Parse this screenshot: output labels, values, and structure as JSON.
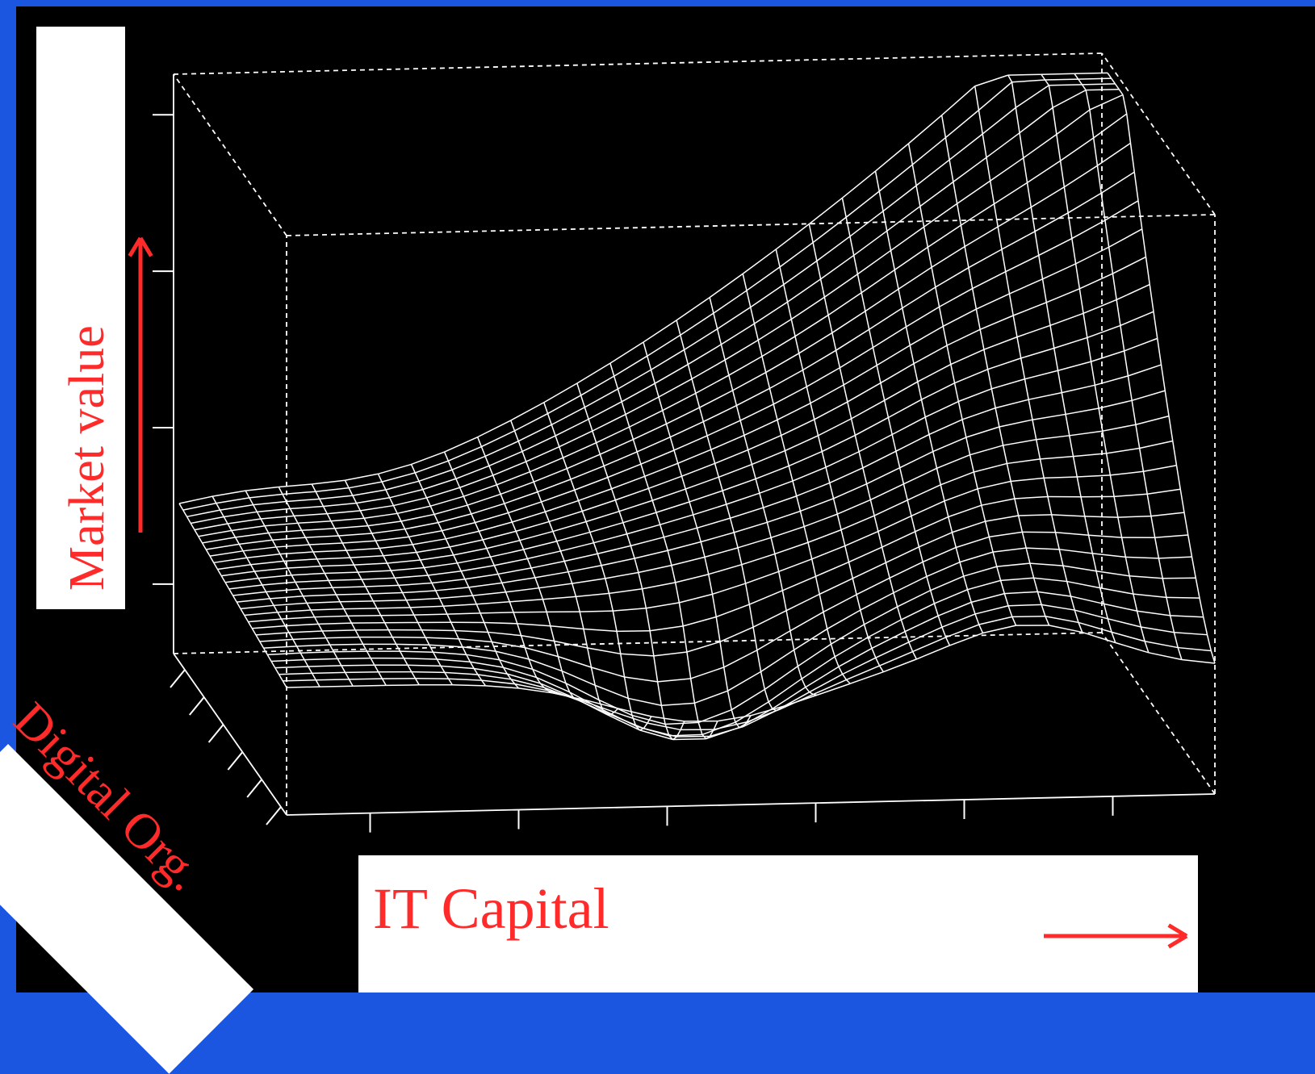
{
  "colors": {
    "background": "#1a56e0",
    "plot_background": "#000000",
    "mesh": "#ffffff",
    "accent": "#ff2b2b",
    "label_box": "#ffffff"
  },
  "chart_data": {
    "type": "surface",
    "title": "",
    "xlabel": "IT Capital",
    "ylabel": "Market value",
    "zlabel": "Digital Org.",
    "grid": false,
    "x_ticks": 6,
    "y_ticks": 4,
    "z_ticks": 6,
    "mesh_resolution": 28,
    "description_shape": "complementarity surface: market value lowest when both IT capital and digital organization are low, rising steeply when both are high",
    "arrows": [
      "market-value-up",
      "it-capital-right"
    ]
  }
}
